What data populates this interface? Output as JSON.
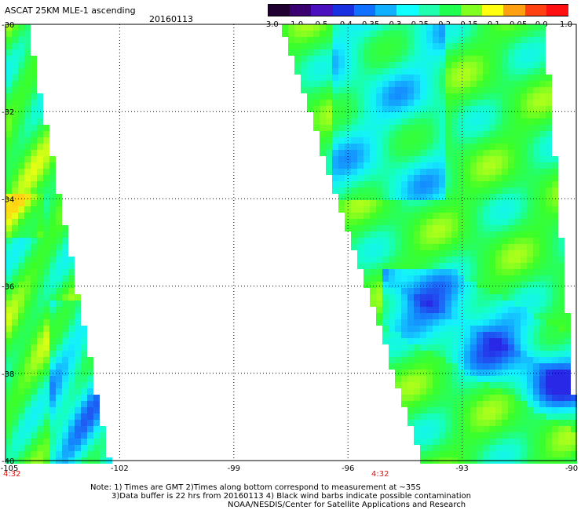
{
  "header": {
    "title": "ASCAT 25KM MLE-1 ascending",
    "date": "20160113"
  },
  "colorbar": {
    "labels": [
      "-3.0",
      "-1.0",
      "-0.5",
      "-0.4",
      "-0.35",
      "-0.3",
      "-0.25",
      "-0.2",
      "-0.15",
      "-0.1",
      "-0.05",
      "0.0",
      "1.0"
    ],
    "colors": [
      "#200030",
      "#3a0070",
      "#4a10c0",
      "#1830e0",
      "#1070ff",
      "#10b0ff",
      "#10ffff",
      "#20ffb0",
      "#20ff50",
      "#80ff20",
      "#ffff10",
      "#ffa010",
      "#ff4010",
      "#ff1010"
    ]
  },
  "map": {
    "lat_labels": [
      "-30",
      "-32",
      "-34",
      "-36",
      "-38",
      "-40"
    ],
    "lon_labels": [
      "-105",
      "-102",
      "-99",
      "-96",
      "-93",
      "-90"
    ],
    "time_labels": [
      "4:32",
      "4:32"
    ],
    "lon_range": [
      -105,
      -90
    ],
    "lat_range": [
      -40,
      -30
    ]
  },
  "notes": {
    "line1": "Note: 1) Times are GMT 2)Times along bottom correspond to measurement at ~35S",
    "line2": "3)Data buffer is 22 hrs from 20160113 4) Black wind barbs indicate possible contamination",
    "line3": "NOAA/NESDIS/Center for Satellite Applications and Research"
  }
}
